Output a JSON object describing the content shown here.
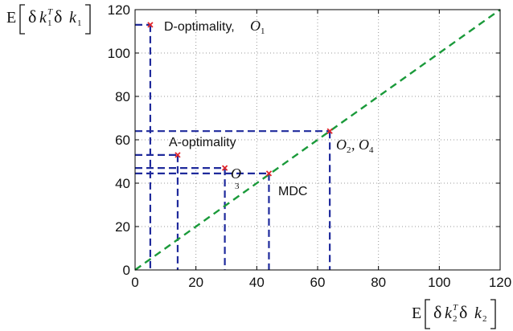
{
  "chart_data": {
    "type": "scatter",
    "title": "",
    "xlim": [
      0,
      120
    ],
    "ylim": [
      0,
      120
    ],
    "xticks": [
      0,
      20,
      40,
      60,
      80,
      100,
      120
    ],
    "yticks": [
      0,
      20,
      40,
      60,
      80,
      100,
      120
    ],
    "x_tick_labels": [
      "0",
      "20",
      "40",
      "60",
      "80",
      "100",
      "120"
    ],
    "y_tick_labels": [
      "0",
      "20",
      "40",
      "60",
      "80",
      "100",
      "120"
    ],
    "grid": true,
    "xlabel": "E[δk₂ᵀδk₂]",
    "ylabel": "E[δk₁ᵀδk₁]",
    "reference_line": {
      "x": [
        0,
        120
      ],
      "y": [
        0,
        120
      ],
      "color": "#1a9a3a",
      "style": "dashed"
    },
    "guide_color": "#1f2a9c",
    "marker_color": "#e0242a",
    "points": [
      {
        "x": 5,
        "y": 113,
        "label": "D-optimality, O₁"
      },
      {
        "x": 14,
        "y": 53,
        "label": "A-optimality"
      },
      {
        "x": 29.5,
        "y": 47,
        "label": "O₃"
      },
      {
        "x": 44,
        "y": 44.5,
        "label": "MDC"
      },
      {
        "x": 64,
        "y": 64,
        "label": "O₂, O₄"
      }
    ]
  },
  "annotations": {
    "d_text": "D-optimality,",
    "d_o": "O",
    "d_sub": "1",
    "a_text": "A-optimality",
    "o3_o": "O",
    "o3_sub": "3",
    "mdc_text": "MDC",
    "o24_o1": "O",
    "o24_sub1": "2",
    "o24_sep": ",",
    "o24_o2": "O",
    "o24_sub2": "4"
  },
  "axis_labels": {
    "x_E": "E",
    "x_d1": "δ",
    "x_k1": "k",
    "x_k1_sub": "2",
    "x_T": "T",
    "x_d2": "δ",
    "x_k2": "k",
    "x_k2_sub": "2",
    "y_E": "E",
    "y_d1": "δ",
    "y_k1": "k",
    "y_k1_sub": "1",
    "y_T": "T",
    "y_d2": "δ",
    "y_k2": "k",
    "y_k2_sub": "1"
  }
}
